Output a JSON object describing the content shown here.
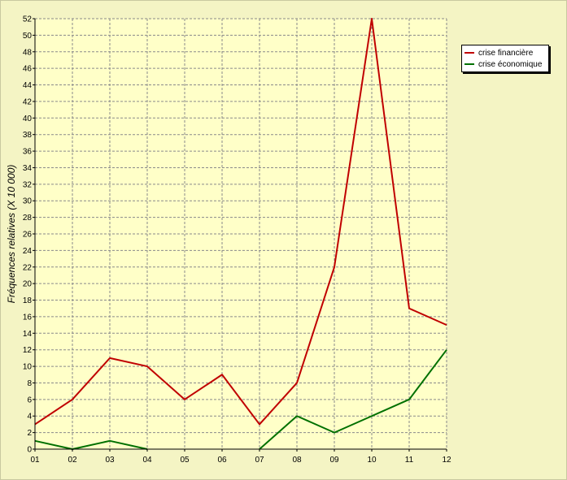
{
  "chart_data": {
    "type": "line",
    "title": "",
    "xlabel": "",
    "ylabel": "Fréquences relatives (X 10 000)",
    "categories": [
      "01",
      "02",
      "03",
      "04",
      "05",
      "06",
      "07",
      "08",
      "09",
      "10",
      "11",
      "12"
    ],
    "ylim": [
      0,
      52
    ],
    "ytick_step": 2,
    "grid": true,
    "legend_position": "top-right",
    "series": [
      {
        "name": "crise financière",
        "color": "#c00000",
        "values": [
          3,
          6,
          11,
          10,
          6,
          9,
          3,
          8,
          22,
          52,
          17,
          15
        ]
      },
      {
        "name": "crise économique",
        "color": "#007000",
        "values": [
          1,
          0,
          1,
          0,
          null,
          null,
          0,
          4,
          2,
          4,
          6,
          12
        ]
      }
    ],
    "colors": {
      "background": "#f4f4c4",
      "plot_background": "#ffffc8",
      "grid": "#8a8a8a"
    }
  }
}
